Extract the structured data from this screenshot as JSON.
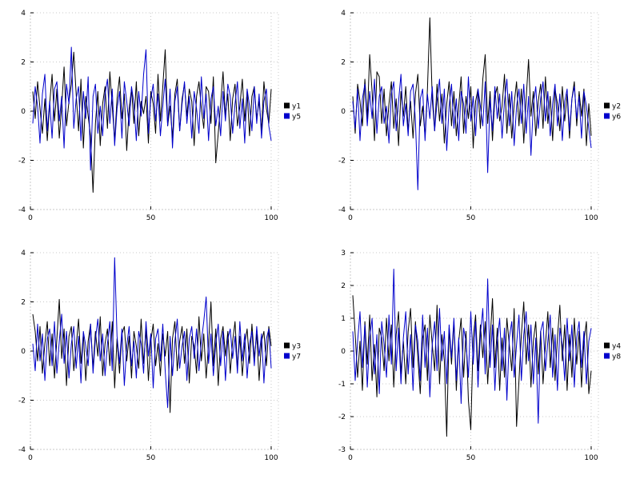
{
  "page": {
    "background": "#ffffff",
    "grid_color": "#c8c8c8",
    "tick_color": "#000000"
  },
  "chart_data": [
    {
      "type": "line",
      "position": "top-left",
      "title": "",
      "xlabel": "",
      "ylabel": "",
      "xlim": [
        0,
        103
      ],
      "ylim": [
        -4,
        4
      ],
      "xticks": [
        0,
        50,
        100
      ],
      "yticks": [
        -4,
        -2,
        0,
        2,
        4
      ],
      "grid": true,
      "legend_position": "right",
      "x_start": 1,
      "series": [
        {
          "name": "y1",
          "color": "#000000",
          "values": [
            0.8,
            -0.3,
            1.2,
            0.1,
            -0.9,
            0.5,
            -1.2,
            0.3,
            1.5,
            -0.4,
            0.9,
            -1.1,
            0.2,
            1.8,
            -0.6,
            0.4,
            1.1,
            2.4,
            0.7,
            -0.8,
            1.3,
            -1.5,
            0.6,
            -0.2,
            -1.0,
            -3.3,
            -0.5,
            0.8,
            -1.4,
            0.3,
            1.0,
            -0.7,
            1.6,
            0.2,
            -1.2,
            0.5,
            1.4,
            -0.3,
            0.7,
            -1.6,
            0.1,
            0.9,
            -0.5,
            1.2,
            -1.0,
            0.4,
            -0.1,
            0.6,
            -1.3,
            0.8,
            0.3,
            -0.9,
            1.5,
            -0.4,
            1.0,
            2.5,
            -0.6,
            0.2,
            -1.1,
            0.7,
            1.3,
            -0.8,
            0.5,
            1.1,
            -0.2,
            0.9,
            0.4,
            -1.4,
            0.6,
            1.2,
            0.1,
            -0.7,
            1.0,
            0.8,
            -0.5,
            1.4,
            -2.1,
            -0.9,
            0.3,
            1.6,
            -0.2,
            0.7,
            -1.2,
            0.5,
            1.1,
            -0.6,
            0.2,
            1.3,
            -0.4,
            0.8,
            -1.0,
            0.6,
            1.0,
            -0.3,
            0.4,
            -0.8,
            1.2,
            0.1,
            -0.5,
            0.9
          ]
        },
        {
          "name": "y5",
          "color": "#0000cc",
          "values": [
            -0.5,
            1.0,
            0.2,
            -1.3,
            0.7,
            1.5,
            -0.8,
            0.4,
            -1.1,
            0.9,
            1.2,
            -0.4,
            0.6,
            -1.5,
            1.1,
            0.3,
            2.6,
            -0.7,
            0.5,
            1.0,
            -1.2,
            0.8,
            -0.3,
            1.4,
            -2.4,
            0.6,
            1.1,
            -0.9,
            0.2,
            -1.0,
            0.7,
            1.3,
            -0.5,
            0.9,
            -1.4,
            0.1,
            0.8,
            -1.1,
            1.2,
            0.4,
            -0.6,
            1.0,
            0.3,
            -1.2,
            0.8,
            -0.2,
            1.5,
            2.5,
            -0.9,
            0.5,
            1.1,
            -0.4,
            0.7,
            -1.0,
            0.2,
            1.3,
            -0.6,
            0.9,
            -1.5,
            0.4,
            1.0,
            -0.8,
            0.3,
            1.2,
            -0.5,
            0.6,
            -1.1,
            0.8,
            0.1,
            -0.9,
            1.4,
            -0.3,
            0.7,
            -1.2,
            0.5,
            1.0,
            -0.6,
            0.2,
            -1.0,
            0.8,
            -0.4,
            1.1,
            0.6,
            -0.9,
            0.3,
            1.2,
            -0.7,
            0.5,
            -1.3,
            0.9,
            0.2,
            -0.8,
            1.0,
            -0.5,
            0.7,
            -1.1,
            0.4,
            0.9,
            -0.6,
            -1.2
          ]
        }
      ]
    },
    {
      "type": "line",
      "position": "top-right",
      "title": "",
      "xlabel": "",
      "ylabel": "",
      "xlim": [
        0,
        103
      ],
      "ylim": [
        -4,
        4
      ],
      "xticks": [
        0,
        50,
        100
      ],
      "yticks": [
        -4,
        -2,
        0,
        2,
        4
      ],
      "grid": true,
      "legend_position": "right",
      "x_start": 1,
      "series": [
        {
          "name": "y2",
          "color": "#000000",
          "values": [
            0.6,
            -0.9,
            1.1,
            0.4,
            -0.6,
            1.3,
            -0.3,
            2.3,
            0.8,
            -1.2,
            1.6,
            1.4,
            -0.5,
            0.9,
            -1.0,
            0.3,
            1.2,
            -0.7,
            0.5,
            -1.4,
            0.8,
            -0.2,
            1.0,
            -0.8,
            0.4,
            -1.1,
            0.7,
            1.5,
            -0.6,
            0.2,
            -1.0,
            0.9,
            3.8,
            0.5,
            -0.8,
            1.1,
            -0.4,
            0.7,
            -1.3,
            0.3,
            1.2,
            -0.6,
            0.8,
            -1.0,
            0.2,
            1.4,
            -0.9,
            0.6,
            -0.3,
            1.0,
            -1.5,
            0.4,
            0.9,
            -0.7,
            1.3,
            2.3,
            -0.5,
            0.8,
            -1.2,
            0.6,
            1.0,
            -0.4,
            0.2,
            1.5,
            -0.9,
            0.7,
            -1.1,
            0.3,
            1.2,
            -0.6,
            0.9,
            -1.3,
            0.5,
            2.1,
            -0.2,
            0.8,
            -1.0,
            0.4,
            1.1,
            -0.7,
            1.4,
            -0.5,
            0.6,
            -1.2,
            0.9,
            0.3,
            -0.8,
            1.0,
            -0.4,
            0.7,
            -1.1,
            0.5,
            1.2,
            -0.6,
            0.8,
            -0.2,
            0.9,
            -1.4,
            0.3,
            -1.0
          ]
        },
        {
          "name": "y6",
          "color": "#0000cc",
          "values": [
            0.4,
            -0.7,
            0.9,
            -1.2,
            0.5,
            1.1,
            -0.6,
            0.8,
            -0.3,
            1.3,
            -0.9,
            0.6,
            1.0,
            -0.5,
            0.2,
            -1.3,
            0.7,
            1.2,
            -0.8,
            0.4,
            1.5,
            -0.6,
            0.3,
            -1.0,
            0.8,
            1.1,
            -0.4,
            -3.2,
            0.5,
            0.9,
            -1.2,
            0.7,
            -0.3,
            1.0,
            -0.8,
            0.4,
            1.3,
            -0.5,
            0.9,
            -1.6,
            0.2,
            1.1,
            -0.7,
            0.5,
            -1.2,
            0.8,
            0.3,
            -0.9,
            1.4,
            -0.4,
            0.6,
            -1.0,
            0.9,
            0.2,
            -0.6,
            1.2,
            -2.5,
            0.5,
            -0.8,
            1.0,
            -0.3,
            0.7,
            -1.1,
            0.4,
            1.3,
            -0.6,
            0.8,
            -1.4,
            0.2,
            0.9,
            -0.5,
            1.1,
            -0.9,
            0.6,
            -1.8,
            0.3,
            1.0,
            -0.7,
            0.5,
            1.2,
            -0.4,
            0.8,
            -1.0,
            0.3,
            1.1,
            -0.6,
            0.7,
            -1.2,
            0.4,
            0.9,
            -0.8,
            0.5,
            1.0,
            -0.3,
            0.6,
            -1.1,
            0.8,
            0.2,
            -0.7,
            -1.5
          ]
        }
      ]
    },
    {
      "type": "line",
      "position": "bottom-left",
      "title": "",
      "xlabel": "",
      "ylabel": "",
      "xlim": [
        0,
        103
      ],
      "ylim": [
        -4,
        4
      ],
      "xticks": [
        0,
        50,
        100
      ],
      "yticks": [
        -4,
        -2,
        0,
        2,
        4
      ],
      "grid": true,
      "legend_position": "right",
      "x_start": 1,
      "series": [
        {
          "name": "y3",
          "color": "#000000",
          "values": [
            1.5,
            0.8,
            -0.4,
            1.0,
            -0.9,
            0.3,
            1.2,
            -0.6,
            0.7,
            -1.1,
            0.5,
            2.1,
            -0.3,
            0.9,
            -1.4,
            0.6,
            1.0,
            -0.8,
            0.2,
            1.3,
            -0.5,
            0.7,
            -1.2,
            0.4,
            1.1,
            -0.7,
            0.8,
            -0.2,
            1.4,
            -1.0,
            0.3,
            0.9,
            -0.6,
            1.2,
            -1.5,
            0.5,
            -0.9,
            0.7,
            1.0,
            -0.4,
            0.6,
            -1.1,
            0.8,
            0.2,
            -0.7,
            1.3,
            -0.5,
            0.9,
            -1.2,
            0.4,
            1.1,
            -0.6,
            0.3,
            -1.0,
            0.7,
            -0.2,
            0.8,
            -2.5,
            0.5,
            1.2,
            -0.8,
            0.4,
            1.0,
            -0.5,
            0.9,
            -1.3,
            0.6,
            0.2,
            -0.9,
            1.4,
            -0.4,
            0.7,
            -1.1,
            0.3,
            2.0,
            -0.6,
            0.9,
            -1.4,
            0.5,
            1.0,
            -0.2,
            0.8,
            -0.9,
            0.4,
            1.2,
            -0.7,
            0.6,
            -1.0,
            0.3,
            0.9,
            -0.5,
            1.1,
            -0.3,
            0.7,
            -1.2,
            0.4,
            0.8,
            -0.6,
            1.0,
            0.2
          ]
        },
        {
          "name": "y7",
          "color": "#0000cc",
          "values": [
            0.3,
            -0.8,
            1.1,
            -0.4,
            0.7,
            -1.2,
            0.5,
            0.9,
            -0.6,
            1.2,
            -0.9,
            0.4,
            1.5,
            -0.5,
            0.8,
            -1.1,
            0.3,
            1.0,
            -0.7,
            0.6,
            -1.3,
            0.8,
            0.2,
            -0.6,
            1.1,
            -0.9,
            0.5,
            1.3,
            -0.4,
            0.7,
            -1.0,
            0.3,
            1.2,
            -0.8,
            3.8,
            0.6,
            -0.5,
            0.9,
            -1.4,
            0.2,
            1.0,
            -0.6,
            0.4,
            -1.1,
            0.8,
            0.3,
            -0.9,
            1.2,
            -0.2,
            0.7,
            -1.5,
            0.5,
            0.9,
            -0.4,
            1.1,
            -0.8,
            -2.3,
            0.6,
            -1.0,
            0.4,
            1.3,
            -0.7,
            0.2,
            0.8,
            -1.2,
            0.5,
            1.0,
            -0.3,
            0.9,
            -0.8,
            0.4,
            1.2,
            2.2,
            -0.5,
            0.7,
            -1.0,
            0.3,
            1.1,
            -0.6,
            0.8,
            -1.2,
            0.5,
            0.9,
            -0.3,
            0.6,
            -0.9,
            1.2,
            -0.4,
            0.7,
            -1.1,
            0.3,
            0.8,
            -0.6,
            1.0,
            -0.2,
            0.7,
            -1.3,
            0.5,
            0.9,
            -0.7
          ]
        }
      ]
    },
    {
      "type": "line",
      "position": "bottom-right",
      "title": "",
      "xlabel": "",
      "ylabel": "",
      "xlim": [
        0,
        103
      ],
      "ylim": [
        -3,
        3
      ],
      "xticks": [
        0,
        50,
        100
      ],
      "yticks": [
        -3,
        -2,
        -1,
        0,
        1,
        2,
        3
      ],
      "grid": true,
      "legend_position": "right",
      "x_start": 1,
      "series": [
        {
          "name": "y4",
          "color": "#000000",
          "values": [
            1.7,
            0.5,
            -0.8,
            0.3,
            -1.2,
            0.9,
            -0.4,
            1.1,
            -0.9,
            0.2,
            -1.4,
            0.7,
            0.4,
            -0.6,
            1.0,
            -0.3,
            0.8,
            -1.1,
            0.5,
            1.2,
            -0.7,
            0.3,
            -1.0,
            0.6,
            1.3,
            -0.5,
            0.9,
            -0.2,
            -1.3,
            0.4,
            0.8,
            -0.9,
            1.1,
            0.2,
            -0.6,
            1.4,
            -1.0,
            0.5,
            -0.3,
            -2.6,
            0.7,
            -0.4,
            0.9,
            -1.2,
            0.3,
            1.0,
            -0.8,
            0.6,
            -1.5,
            -2.4,
            0.4,
            1.1,
            -0.6,
            0.8,
            -0.2,
            0.9,
            -1.0,
            0.3,
            1.6,
            -0.5,
            0.7,
            -1.2,
            0.4,
            -0.8,
            1.0,
            0.2,
            -0.6,
            1.3,
            -2.3,
            -0.9,
            0.5,
            1.5,
            -0.4,
            0.8,
            -1.1,
            0.3,
            0.9,
            -0.7,
            0.6,
            -1.0,
            0.2,
            1.2,
            -0.5,
            0.7,
            -0.9,
            0.4,
            1.4,
            -0.3,
            0.8,
            -1.2,
            0.5,
            -0.8,
            1.0,
            -0.4,
            0.6,
            -1.1,
            0.3,
            0.9,
            -1.3,
            -0.6
          ]
        },
        {
          "name": "y8",
          "color": "#0000cc",
          "values": [
            0.6,
            -0.9,
            0.3,
            1.2,
            -0.5,
            0.8,
            -1.1,
            0.4,
            1.0,
            -0.7,
            0.5,
            -1.3,
            0.9,
            0.2,
            -0.8,
            1.1,
            -0.4,
            2.5,
            -0.6,
            0.7,
            -1.0,
            0.4,
            1.2,
            -0.7,
            0.5,
            -1.2,
            0.8,
            0.3,
            -0.9,
            1.1,
            -0.5,
            0.7,
            -1.4,
            0.2,
            0.9,
            -0.6,
            1.3,
            -0.3,
            0.6,
            -1.0,
            0.8,
            -0.2,
            1.0,
            -0.9,
            0.4,
            -1.6,
            0.7,
            0.3,
            -0.8,
            1.2,
            -0.4,
            0.9,
            -1.1,
            0.5,
            1.3,
            -0.7,
            2.2,
            -0.5,
            0.8,
            -1.2,
            0.3,
            1.0,
            -0.6,
            0.7,
            -1.5,
            0.4,
            0.9,
            -0.8,
            0.2,
            1.1,
            -0.9,
            0.5,
            1.2,
            -0.3,
            0.8,
            -1.0,
            0.4,
            -2.2,
            0.6,
            0.9,
            -0.6,
            0.3,
            1.1,
            -0.8,
            0.5,
            -1.2,
            0.7,
            0.2,
            -0.9,
            1.0,
            -0.3,
            0.8,
            -1.1,
            0.4,
            0.9,
            -0.5,
            0.6,
            -1.0,
            0.3,
            0.7
          ]
        }
      ]
    }
  ]
}
